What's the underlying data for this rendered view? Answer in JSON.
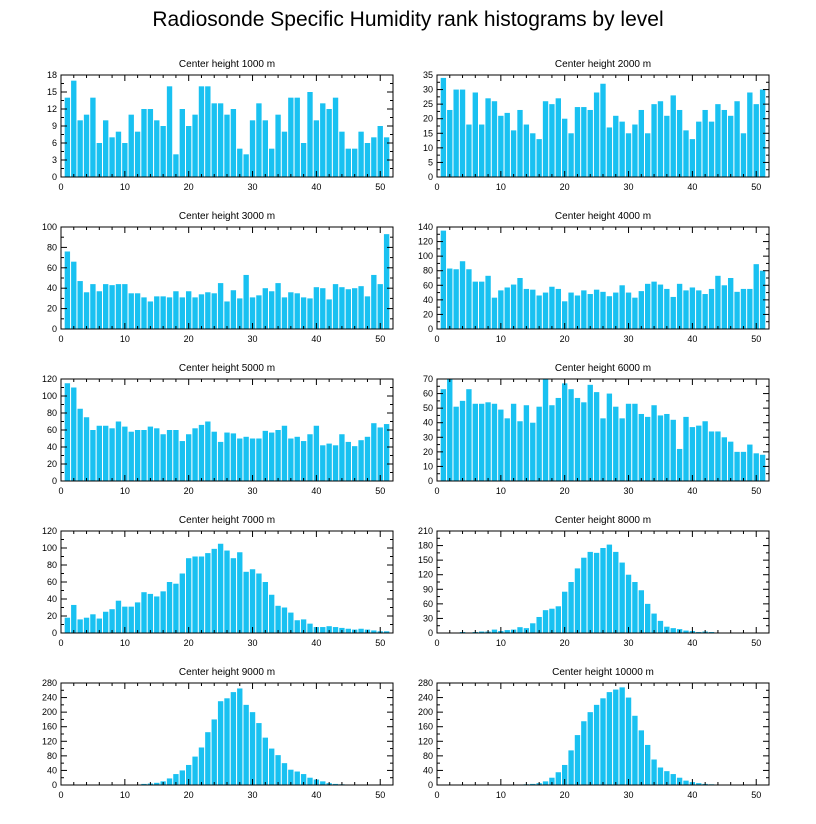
{
  "title": "Radiosonde Specific Humidity rank histograms by level",
  "colors": {
    "bar": "#19c1f1",
    "axis": "#000000",
    "background": "#ffffff"
  },
  "chart_data": [
    {
      "type": "bar",
      "title": "Center height 1000 m",
      "x": [
        1,
        2,
        3,
        4,
        5,
        6,
        7,
        8,
        9,
        10,
        11,
        12,
        13,
        14,
        15,
        16,
        17,
        18,
        19,
        20,
        21,
        22,
        23,
        24,
        25,
        26,
        27,
        28,
        29,
        30,
        31,
        32,
        33,
        34,
        35,
        36,
        37,
        38,
        39,
        40,
        41,
        42,
        43,
        44,
        45,
        46,
        47,
        48,
        49,
        50,
        51
      ],
      "values": [
        14,
        17,
        10,
        11,
        14,
        6,
        10,
        7,
        8,
        6,
        11,
        8,
        12,
        12,
        10,
        9,
        16,
        4,
        12,
        9,
        11,
        16,
        16,
        13,
        13,
        11,
        12,
        5,
        4,
        10,
        13,
        10,
        5,
        11,
        8,
        14,
        14,
        6,
        15,
        10,
        13,
        12,
        14,
        8,
        5,
        5,
        8,
        6,
        7,
        9,
        7
      ],
      "xticks": [
        0,
        10,
        20,
        30,
        40,
        50
      ],
      "yticks": [
        0,
        3,
        6,
        9,
        12,
        15,
        18
      ],
      "xlim": [
        0,
        52
      ],
      "ylim": [
        0,
        18
      ]
    },
    {
      "type": "bar",
      "title": "Center height 2000 m",
      "x": [
        1,
        2,
        3,
        4,
        5,
        6,
        7,
        8,
        9,
        10,
        11,
        12,
        13,
        14,
        15,
        16,
        17,
        18,
        19,
        20,
        21,
        22,
        23,
        24,
        25,
        26,
        27,
        28,
        29,
        30,
        31,
        32,
        33,
        34,
        35,
        36,
        37,
        38,
        39,
        40,
        41,
        42,
        43,
        44,
        45,
        46,
        47,
        48,
        49,
        50,
        51
      ],
      "values": [
        34,
        23,
        30,
        30,
        18,
        29,
        18,
        27,
        26,
        21,
        22,
        16,
        23,
        18,
        15,
        13,
        26,
        25,
        27,
        20,
        15,
        24,
        24,
        23,
        29,
        32,
        17,
        21,
        19,
        15,
        18,
        23,
        15,
        25,
        26,
        21,
        28,
        23,
        16,
        13,
        19,
        23,
        19,
        25,
        23,
        21,
        26,
        15,
        29,
        25,
        30
      ],
      "xticks": [
        0,
        10,
        20,
        30,
        40,
        50
      ],
      "yticks": [
        0,
        5,
        10,
        15,
        20,
        25,
        30,
        35
      ],
      "xlim": [
        0,
        52
      ],
      "ylim": [
        0,
        35
      ]
    },
    {
      "type": "bar",
      "title": "Center height 3000 m",
      "x": [
        1,
        2,
        3,
        4,
        5,
        6,
        7,
        8,
        9,
        10,
        11,
        12,
        13,
        14,
        15,
        16,
        17,
        18,
        19,
        20,
        21,
        22,
        23,
        24,
        25,
        26,
        27,
        28,
        29,
        30,
        31,
        32,
        33,
        34,
        35,
        36,
        37,
        38,
        39,
        40,
        41,
        42,
        43,
        44,
        45,
        46,
        47,
        48,
        49,
        50,
        51
      ],
      "values": [
        76,
        66,
        47,
        36,
        44,
        37,
        44,
        43,
        44,
        44,
        35,
        35,
        31,
        27,
        32,
        32,
        31,
        37,
        31,
        37,
        31,
        34,
        36,
        35,
        45,
        27,
        38,
        30,
        53,
        31,
        33,
        40,
        37,
        45,
        31,
        36,
        35,
        31,
        30,
        41,
        40,
        29,
        44,
        41,
        39,
        40,
        42,
        32,
        53,
        44,
        93
      ],
      "xticks": [
        0,
        10,
        20,
        30,
        40,
        50
      ],
      "yticks": [
        0,
        20,
        40,
        60,
        80,
        100
      ],
      "xlim": [
        0,
        52
      ],
      "ylim": [
        0,
        100
      ]
    },
    {
      "type": "bar",
      "title": "Center height 4000 m",
      "x": [
        1,
        2,
        3,
        4,
        5,
        6,
        7,
        8,
        9,
        10,
        11,
        12,
        13,
        14,
        15,
        16,
        17,
        18,
        19,
        20,
        21,
        22,
        23,
        24,
        25,
        26,
        27,
        28,
        29,
        30,
        31,
        32,
        33,
        34,
        35,
        36,
        37,
        38,
        39,
        40,
        41,
        42,
        43,
        44,
        45,
        46,
        47,
        48,
        49,
        50,
        51
      ],
      "values": [
        135,
        83,
        82,
        93,
        82,
        65,
        65,
        73,
        43,
        53,
        57,
        61,
        70,
        55,
        54,
        46,
        50,
        58,
        55,
        38,
        50,
        46,
        53,
        48,
        54,
        51,
        45,
        50,
        60,
        50,
        43,
        52,
        62,
        65,
        61,
        55,
        44,
        62,
        53,
        57,
        53,
        48,
        55,
        73,
        60,
        70,
        51,
        55,
        55,
        89,
        80
      ],
      "xticks": [
        0,
        10,
        20,
        30,
        40,
        50
      ],
      "yticks": [
        0,
        20,
        40,
        60,
        80,
        100,
        120,
        140
      ],
      "xlim": [
        0,
        52
      ],
      "ylim": [
        0,
        140
      ]
    },
    {
      "type": "bar",
      "title": "Center height 5000 m",
      "x": [
        1,
        2,
        3,
        4,
        5,
        6,
        7,
        8,
        9,
        10,
        11,
        12,
        13,
        14,
        15,
        16,
        17,
        18,
        19,
        20,
        21,
        22,
        23,
        24,
        25,
        26,
        27,
        28,
        29,
        30,
        31,
        32,
        33,
        34,
        35,
        36,
        37,
        38,
        39,
        40,
        41,
        42,
        43,
        44,
        45,
        46,
        47,
        48,
        49,
        50,
        51
      ],
      "values": [
        115,
        110,
        85,
        75,
        60,
        65,
        65,
        62,
        70,
        64,
        58,
        60,
        60,
        64,
        62,
        55,
        60,
        60,
        47,
        55,
        62,
        66,
        70,
        58,
        46,
        57,
        56,
        50,
        52,
        50,
        50,
        59,
        57,
        60,
        65,
        50,
        52,
        47,
        55,
        65,
        42,
        44,
        42,
        55,
        46,
        41,
        48,
        52,
        68,
        63,
        67
      ],
      "xticks": [
        0,
        10,
        20,
        30,
        40,
        50
      ],
      "yticks": [
        0,
        20,
        40,
        60,
        80,
        100,
        120
      ],
      "xlim": [
        0,
        52
      ],
      "ylim": [
        0,
        120
      ]
    },
    {
      "type": "bar",
      "title": "Center height 6000 m",
      "x": [
        1,
        2,
        3,
        4,
        5,
        6,
        7,
        8,
        9,
        10,
        11,
        12,
        13,
        14,
        15,
        16,
        17,
        18,
        19,
        20,
        21,
        22,
        23,
        24,
        25,
        26,
        27,
        28,
        29,
        30,
        31,
        32,
        33,
        34,
        35,
        36,
        37,
        38,
        39,
        40,
        41,
        42,
        43,
        44,
        45,
        46,
        47,
        48,
        49,
        50,
        51
      ],
      "values": [
        63,
        70,
        51,
        55,
        63,
        53,
        53,
        54,
        53,
        49,
        43,
        53,
        41,
        52,
        40,
        51,
        70,
        52,
        57,
        67,
        63,
        57,
        54,
        66,
        61,
        43,
        60,
        51,
        43,
        53,
        53,
        46,
        44,
        52,
        45,
        46,
        42,
        22,
        44,
        37,
        38,
        41,
        34,
        34,
        30,
        27,
        20,
        20,
        25,
        19,
        18
      ],
      "xticks": [
        0,
        10,
        20,
        30,
        40,
        50
      ],
      "yticks": [
        0,
        10,
        20,
        30,
        40,
        50,
        60,
        70
      ],
      "xlim": [
        0,
        52
      ],
      "ylim": [
        0,
        70
      ]
    },
    {
      "type": "bar",
      "title": "Center height 7000 m",
      "x": [
        1,
        2,
        3,
        4,
        5,
        6,
        7,
        8,
        9,
        10,
        11,
        12,
        13,
        14,
        15,
        16,
        17,
        18,
        19,
        20,
        21,
        22,
        23,
        24,
        25,
        26,
        27,
        28,
        29,
        30,
        31,
        32,
        33,
        34,
        35,
        36,
        37,
        38,
        39,
        40,
        41,
        42,
        43,
        44,
        45,
        46,
        47,
        48,
        49,
        50,
        51
      ],
      "values": [
        18,
        33,
        16,
        18,
        22,
        17,
        25,
        28,
        38,
        31,
        31,
        36,
        48,
        46,
        43,
        49,
        60,
        58,
        70,
        88,
        90,
        90,
        94,
        99,
        105,
        97,
        88,
        95,
        72,
        75,
        70,
        60,
        45,
        32,
        30,
        24,
        15,
        16,
        11,
        7,
        7,
        8,
        7,
        6,
        5,
        4,
        5,
        4,
        3,
        2,
        2
      ],
      "xticks": [
        0,
        10,
        20,
        30,
        40,
        50
      ],
      "yticks": [
        0,
        20,
        40,
        60,
        80,
        100,
        120
      ],
      "xlim": [
        0,
        52
      ],
      "ylim": [
        0,
        120
      ]
    },
    {
      "type": "bar",
      "title": "Center height 8000 m",
      "x": [
        1,
        2,
        3,
        4,
        5,
        6,
        7,
        8,
        9,
        10,
        11,
        12,
        13,
        14,
        15,
        16,
        17,
        18,
        19,
        20,
        21,
        22,
        23,
        24,
        25,
        26,
        27,
        28,
        29,
        30,
        31,
        32,
        33,
        34,
        35,
        36,
        37,
        38,
        39,
        40,
        41,
        42,
        43,
        44,
        45,
        46,
        47,
        48,
        49,
        50,
        51
      ],
      "values": [
        0,
        0,
        0,
        2,
        1,
        2,
        3,
        3,
        7,
        4,
        6,
        7,
        12,
        10,
        20,
        33,
        47,
        50,
        55,
        85,
        105,
        133,
        155,
        167,
        165,
        175,
        182,
        167,
        145,
        120,
        105,
        88,
        60,
        40,
        25,
        13,
        10,
        8,
        5,
        4,
        2,
        3,
        2,
        1,
        1,
        1,
        0,
        1,
        0,
        0,
        0
      ],
      "xticks": [
        0,
        10,
        20,
        30,
        40,
        50
      ],
      "yticks": [
        0,
        30,
        60,
        90,
        120,
        150,
        180,
        210
      ],
      "xlim": [
        0,
        52
      ],
      "ylim": [
        0,
        210
      ]
    },
    {
      "type": "bar",
      "title": "Center height 9000 m",
      "x": [
        1,
        2,
        3,
        4,
        5,
        6,
        7,
        8,
        9,
        10,
        11,
        12,
        13,
        14,
        15,
        16,
        17,
        18,
        19,
        20,
        21,
        22,
        23,
        24,
        25,
        26,
        27,
        28,
        29,
        30,
        31,
        32,
        33,
        34,
        35,
        36,
        37,
        38,
        39,
        40,
        41,
        42,
        43,
        44,
        45,
        46,
        47,
        48,
        49,
        50,
        51
      ],
      "values": [
        0,
        0,
        0,
        0,
        0,
        0,
        0,
        0,
        0,
        0,
        1,
        1,
        3,
        4,
        6,
        10,
        18,
        30,
        40,
        55,
        78,
        103,
        145,
        180,
        230,
        238,
        255,
        265,
        220,
        200,
        170,
        130,
        100,
        82,
        60,
        42,
        37,
        30,
        20,
        15,
        10,
        5,
        3,
        2,
        1,
        0,
        0,
        0,
        0,
        0,
        0
      ],
      "xticks": [
        0,
        10,
        20,
        30,
        40,
        50
      ],
      "yticks": [
        0,
        40,
        80,
        120,
        160,
        200,
        240,
        280
      ],
      "xlim": [
        0,
        52
      ],
      "ylim": [
        0,
        280
      ]
    },
    {
      "type": "bar",
      "title": "Center height 10000 m",
      "x": [
        1,
        2,
        3,
        4,
        5,
        6,
        7,
        8,
        9,
        10,
        11,
        12,
        13,
        14,
        15,
        16,
        17,
        18,
        19,
        20,
        21,
        22,
        23,
        24,
        25,
        26,
        27,
        28,
        29,
        30,
        31,
        32,
        33,
        34,
        35,
        36,
        37,
        38,
        39,
        40,
        41,
        42,
        43,
        44,
        45,
        46,
        47,
        48,
        49,
        50,
        51
      ],
      "values": [
        0,
        0,
        0,
        0,
        0,
        0,
        0,
        0,
        0,
        0,
        0,
        0,
        1,
        2,
        3,
        5,
        10,
        20,
        35,
        55,
        95,
        137,
        175,
        200,
        220,
        238,
        255,
        262,
        268,
        240,
        190,
        150,
        110,
        70,
        48,
        38,
        30,
        20,
        12,
        8,
        5,
        3,
        2,
        1,
        1,
        0,
        0,
        0,
        0,
        0,
        0
      ],
      "xticks": [
        0,
        10,
        20,
        30,
        40,
        50
      ],
      "yticks": [
        0,
        40,
        80,
        120,
        160,
        200,
        240,
        280
      ],
      "xlim": [
        0,
        52
      ],
      "ylim": [
        0,
        280
      ]
    }
  ]
}
